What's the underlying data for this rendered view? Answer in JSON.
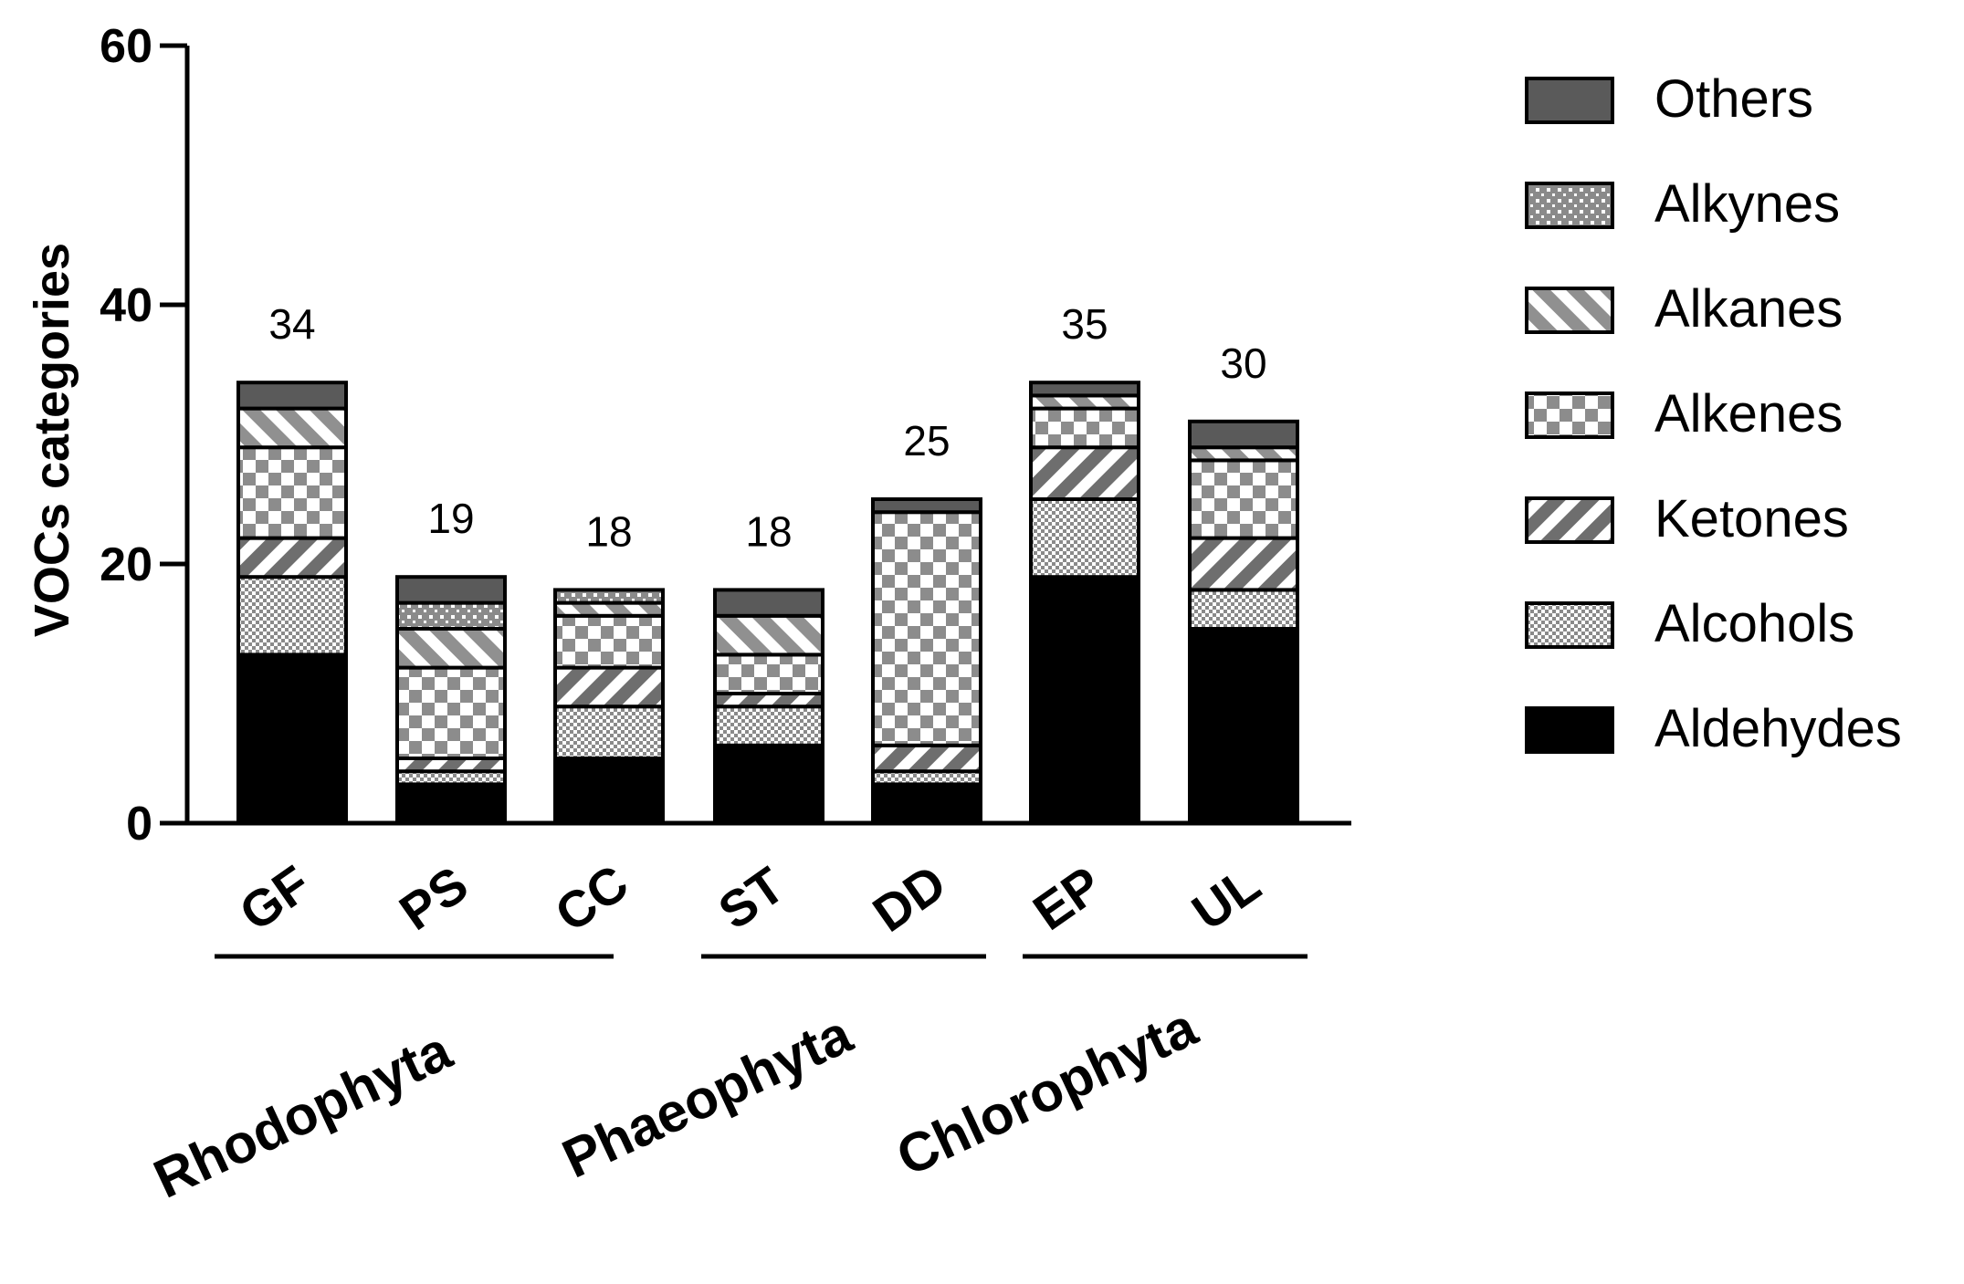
{
  "chart_data": {
    "type": "bar",
    "stacked": true,
    "ylabel": "VOCs categories",
    "ylim": [
      0,
      60
    ],
    "yticks": [
      "0",
      "20",
      "40",
      "60"
    ],
    "grid": false,
    "legend_position": "right",
    "categories": [
      "GF",
      "PS",
      "CC",
      "ST",
      "DD",
      "EP",
      "UL"
    ],
    "totals": [
      "34",
      "19",
      "18",
      "18",
      "25",
      "35",
      "30"
    ],
    "groups": [
      {
        "label": "Rhodophyta",
        "categories": [
          "GF",
          "PS",
          "CC"
        ]
      },
      {
        "label": "Phaeophyta",
        "categories": [
          "ST",
          "DD"
        ]
      },
      {
        "label": "Chlorophyta",
        "categories": [
          "EP",
          "UL"
        ]
      }
    ],
    "series": [
      {
        "name": "Aldehydes",
        "pattern": "solid-black",
        "values": [
          13,
          3,
          5,
          6,
          3,
          19,
          15
        ]
      },
      {
        "name": "Alcohols",
        "pattern": "fine-dots",
        "values": [
          6,
          1,
          4,
          3,
          1,
          6,
          3
        ]
      },
      {
        "name": "Ketones",
        "pattern": "forward-stripes",
        "values": [
          3,
          1,
          3,
          1,
          2,
          4,
          4
        ]
      },
      {
        "name": "Alkenes",
        "pattern": "checkerboard",
        "values": [
          7,
          7,
          4,
          3,
          18,
          3,
          6
        ]
      },
      {
        "name": "Alkanes",
        "pattern": "backward-stripes",
        "values": [
          3,
          3,
          1,
          3,
          0,
          1,
          1
        ]
      },
      {
        "name": "Alkynes",
        "pattern": "small-grid",
        "values": [
          0,
          2,
          1,
          0,
          0,
          0,
          0
        ]
      },
      {
        "name": "Others",
        "pattern": "solid-gray",
        "values": [
          2,
          2,
          0,
          2,
          1,
          1,
          2
        ]
      }
    ]
  },
  "colors": {
    "aldehydes": "#000000",
    "others": "#5a5a5a",
    "pattern_dark": "#707070",
    "pattern_light": "#ffffff",
    "axis": "#000000"
  }
}
